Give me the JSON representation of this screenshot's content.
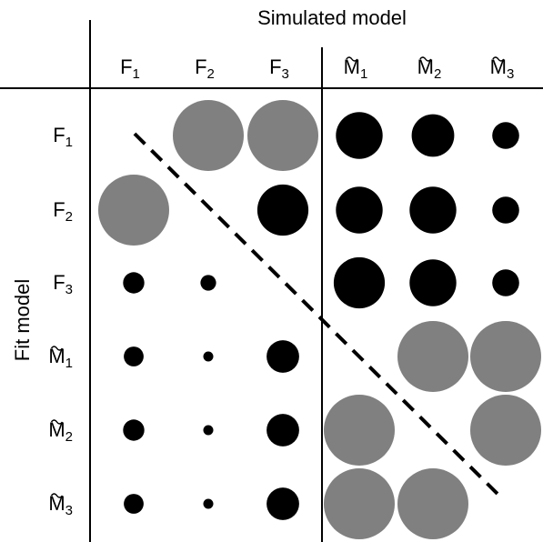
{
  "header": {
    "title": "Simulated model"
  },
  "side": {
    "title": "Fit model"
  },
  "columns": [
    {
      "base": "F",
      "sub": "1",
      "tilde": false
    },
    {
      "base": "F",
      "sub": "2",
      "tilde": false
    },
    {
      "base": "F",
      "sub": "3",
      "tilde": false
    },
    {
      "base": "M",
      "sub": "1",
      "tilde": true
    },
    {
      "base": "M",
      "sub": "2",
      "tilde": true
    },
    {
      "base": "M",
      "sub": "3",
      "tilde": true
    }
  ],
  "rows": [
    {
      "base": "F",
      "sub": "1",
      "tilde": false
    },
    {
      "base": "F",
      "sub": "2",
      "tilde": false
    },
    {
      "base": "F",
      "sub": "3",
      "tilde": false
    },
    {
      "base": "M",
      "sub": "1",
      "tilde": true
    },
    {
      "base": "M",
      "sub": "2",
      "tilde": true
    },
    {
      "base": "M",
      "sub": "3",
      "tilde": true
    }
  ],
  "colors": {
    "black": "#000000",
    "gray": "#808080"
  },
  "cells": [
    {
      "row": 0,
      "col": 1,
      "size": 1.0,
      "color": "gray"
    },
    {
      "row": 0,
      "col": 2,
      "size": 1.0,
      "color": "gray"
    },
    {
      "row": 0,
      "col": 3,
      "size": 0.66,
      "color": "black"
    },
    {
      "row": 0,
      "col": 4,
      "size": 0.6,
      "color": "black"
    },
    {
      "row": 0,
      "col": 5,
      "size": 0.38,
      "color": "black"
    },
    {
      "row": 1,
      "col": 0,
      "size": 1.0,
      "color": "gray"
    },
    {
      "row": 1,
      "col": 2,
      "size": 0.72,
      "color": "black"
    },
    {
      "row": 1,
      "col": 3,
      "size": 0.66,
      "color": "black"
    },
    {
      "row": 1,
      "col": 4,
      "size": 0.66,
      "color": "black"
    },
    {
      "row": 1,
      "col": 5,
      "size": 0.38,
      "color": "black"
    },
    {
      "row": 2,
      "col": 0,
      "size": 0.3,
      "color": "black"
    },
    {
      "row": 2,
      "col": 1,
      "size": 0.22,
      "color": "black"
    },
    {
      "row": 2,
      "col": 3,
      "size": 0.72,
      "color": "black"
    },
    {
      "row": 2,
      "col": 4,
      "size": 0.66,
      "color": "black"
    },
    {
      "row": 2,
      "col": 5,
      "size": 0.38,
      "color": "black"
    },
    {
      "row": 3,
      "col": 0,
      "size": 0.28,
      "color": "black"
    },
    {
      "row": 3,
      "col": 1,
      "size": 0.14,
      "color": "black"
    },
    {
      "row": 3,
      "col": 2,
      "size": 0.46,
      "color": "black"
    },
    {
      "row": 3,
      "col": 4,
      "size": 1.0,
      "color": "gray"
    },
    {
      "row": 3,
      "col": 5,
      "size": 1.0,
      "color": "gray"
    },
    {
      "row": 4,
      "col": 0,
      "size": 0.3,
      "color": "black"
    },
    {
      "row": 4,
      "col": 1,
      "size": 0.14,
      "color": "black"
    },
    {
      "row": 4,
      "col": 2,
      "size": 0.46,
      "color": "black"
    },
    {
      "row": 4,
      "col": 3,
      "size": 1.0,
      "color": "gray"
    },
    {
      "row": 4,
      "col": 5,
      "size": 1.0,
      "color": "gray"
    },
    {
      "row": 5,
      "col": 0,
      "size": 0.28,
      "color": "black"
    },
    {
      "row": 5,
      "col": 1,
      "size": 0.14,
      "color": "black"
    },
    {
      "row": 5,
      "col": 2,
      "size": 0.46,
      "color": "black"
    },
    {
      "row": 5,
      "col": 3,
      "size": 1.0,
      "color": "gray"
    },
    {
      "row": 5,
      "col": 4,
      "size": 1.0,
      "color": "gray"
    }
  ]
}
